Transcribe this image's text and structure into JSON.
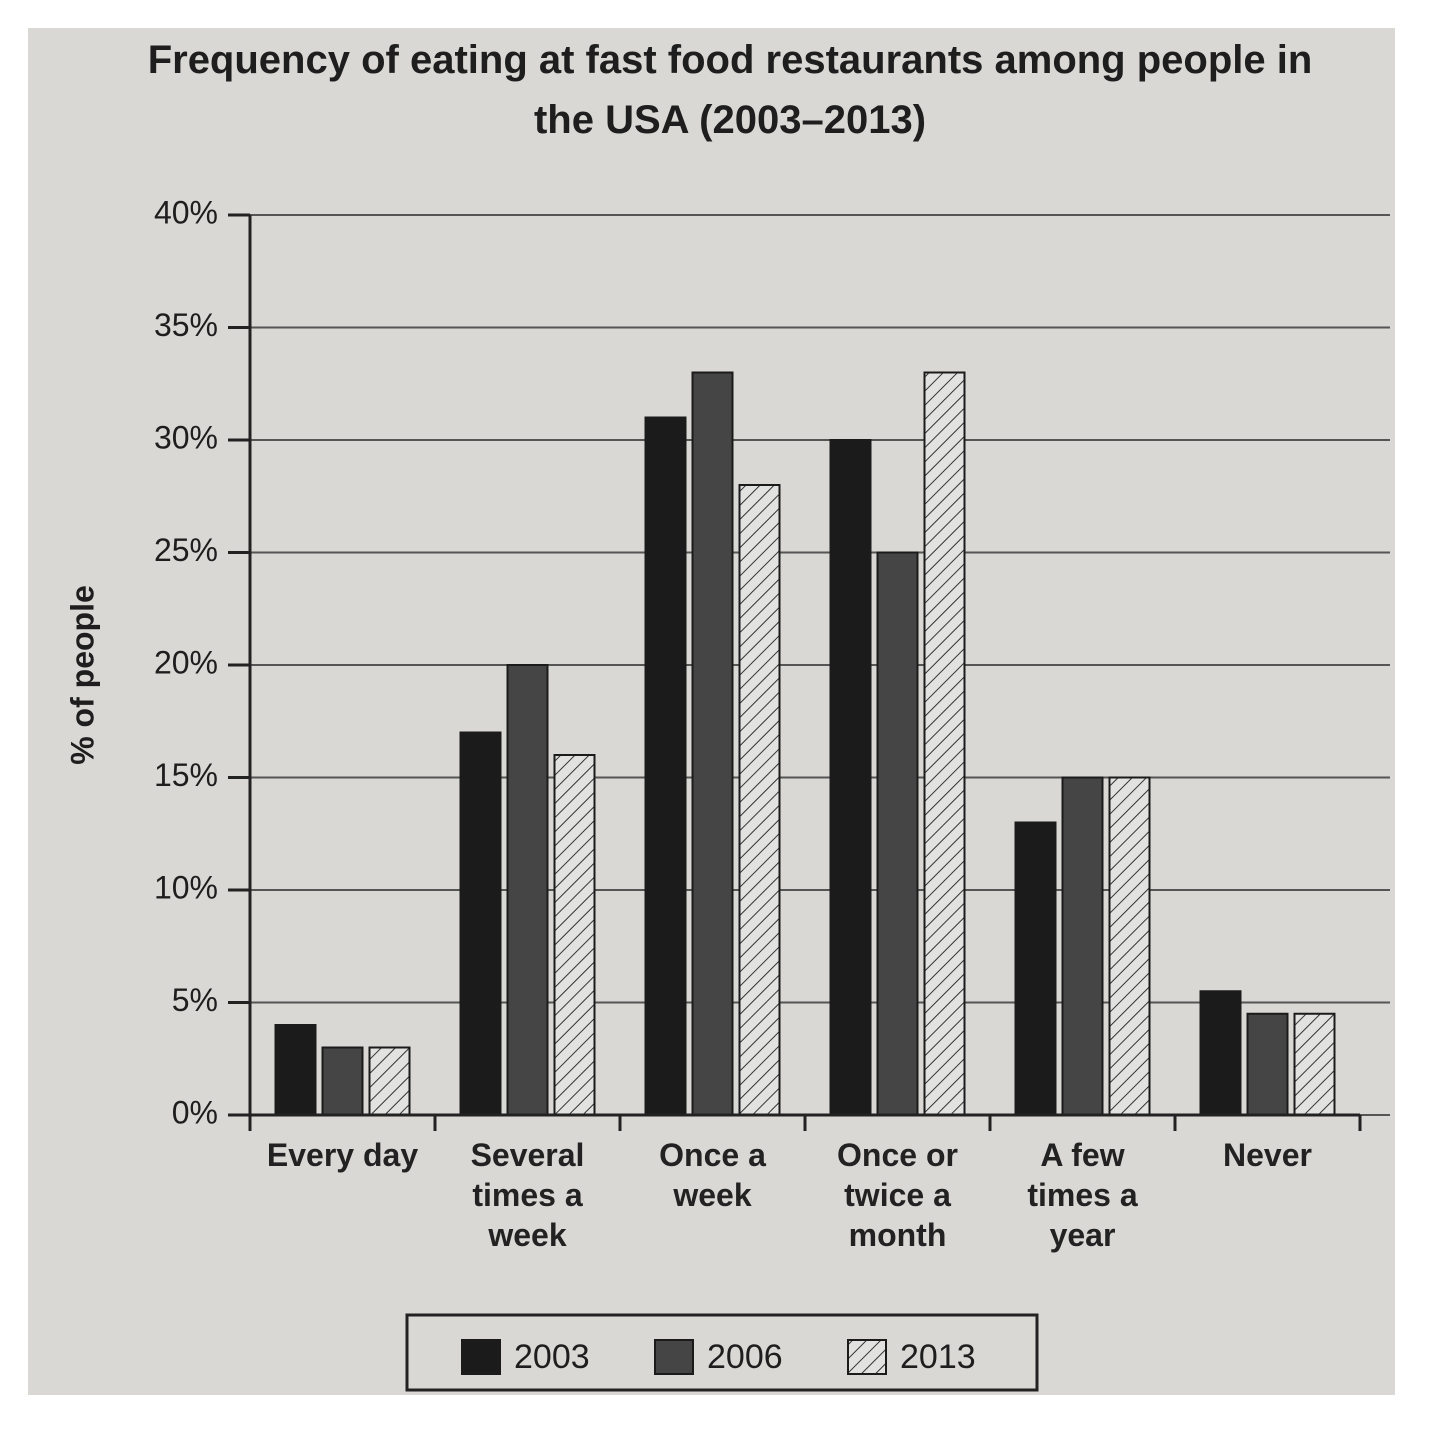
{
  "chart_data": {
    "type": "bar",
    "title": "Frequency of eating at fast food restaurants among people in the USA (2003–2013)",
    "ylabel": "% of people",
    "categories": [
      "Every day",
      "Several times a week",
      "Once a week",
      "Once or twice a month",
      "A few times a year",
      "Never"
    ],
    "series": [
      {
        "name": "2003",
        "color": "#1b1b1b",
        "values": [
          4,
          17,
          31,
          30,
          13,
          5.5
        ]
      },
      {
        "name": "2006",
        "color": "#454545",
        "values": [
          3,
          20,
          33,
          25,
          15,
          4.5
        ]
      },
      {
        "name": "2013",
        "color": "#e2e2e0",
        "hatch": true,
        "values": [
          3,
          16,
          28,
          33,
          15,
          4.5
        ]
      }
    ],
    "ylim": [
      0,
      40
    ],
    "yticks": [
      {
        "value": 0,
        "label": "0%"
      },
      {
        "value": 5,
        "label": "5%"
      },
      {
        "value": 10,
        "label": "10%"
      },
      {
        "value": 15,
        "label": "15%"
      },
      {
        "value": 20,
        "label": "20%"
      },
      {
        "value": 25,
        "label": "25%"
      },
      {
        "value": 30,
        "label": "30%"
      },
      {
        "value": 35,
        "label": "35%"
      },
      {
        "value": 40,
        "label": "40%"
      }
    ],
    "grid": true,
    "legend": "bottom"
  }
}
